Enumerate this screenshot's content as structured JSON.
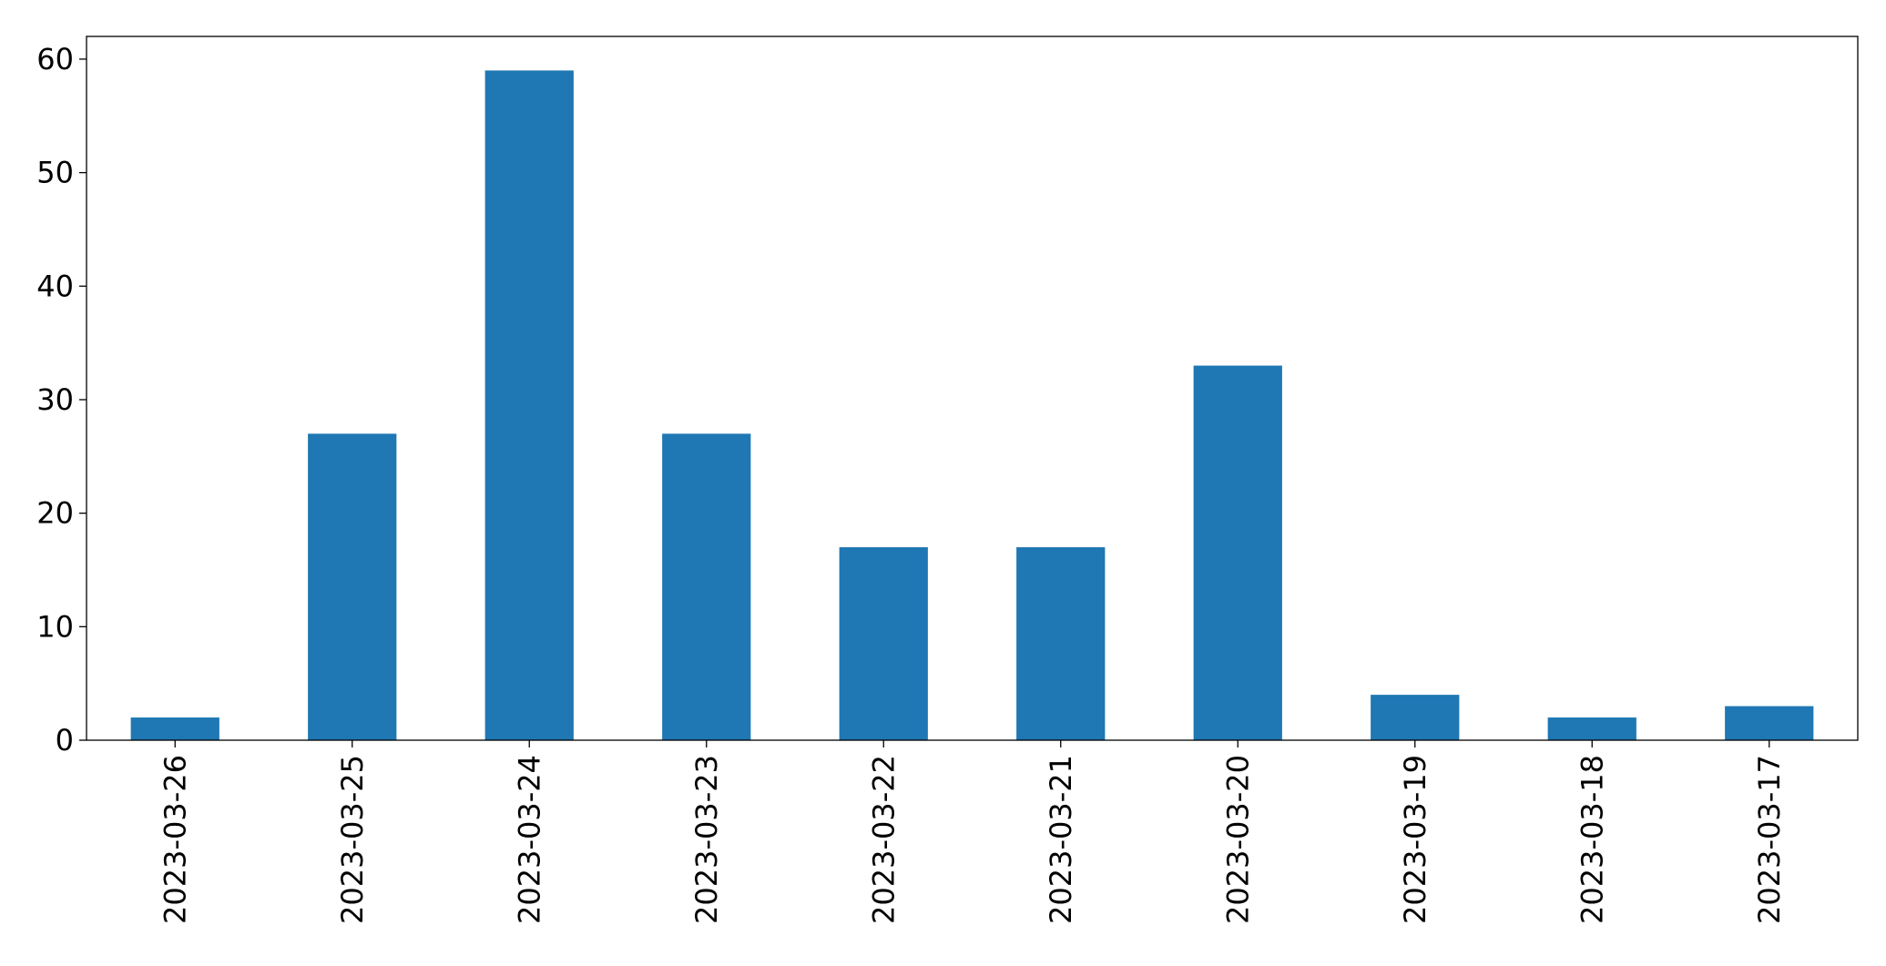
{
  "chart_data": {
    "type": "bar",
    "title": "",
    "xlabel": "",
    "ylabel": "",
    "categories": [
      "2023-03-26",
      "2023-03-25",
      "2023-03-24",
      "2023-03-23",
      "2023-03-22",
      "2023-03-21",
      "2023-03-20",
      "2023-03-19",
      "2023-03-18",
      "2023-03-17"
    ],
    "values": [
      2,
      27,
      59,
      27,
      17,
      17,
      33,
      4,
      2,
      3
    ],
    "ylim": [
      0,
      62
    ],
    "yticks": [
      "0",
      "10",
      "20",
      "30",
      "40",
      "50",
      "60"
    ],
    "grid": false,
    "legend": "none",
    "bar_color": "#1f77b4",
    "axis_color": "#000000"
  }
}
